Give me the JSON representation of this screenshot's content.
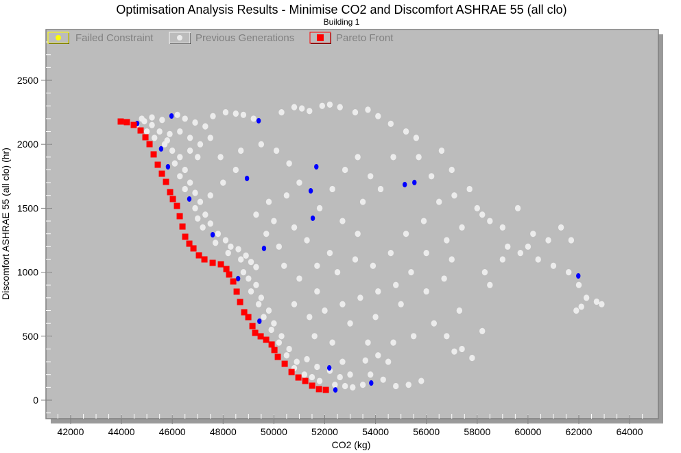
{
  "chart_data": {
    "type": "scatter",
    "title": "Optimisation Analysis Results - Minimise CO2 and Discomfort ASHRAE 55 (all clo)",
    "subtitle": "Building 1",
    "xlabel": "CO2 (kg)",
    "ylabel": "Discomfort ASHRAE 55 (all clo) (hr)",
    "xlim": [
      41000,
      65000
    ],
    "ylim": [
      -150,
      2900
    ],
    "xticks": [
      42000,
      44000,
      46000,
      48000,
      50000,
      52000,
      54000,
      56000,
      58000,
      60000,
      62000,
      64000
    ],
    "yticks": [
      0,
      500,
      1000,
      1500,
      2000,
      2500
    ],
    "legend_position": "top-left",
    "colors": {
      "plot_bg": "#bcbcbc",
      "previous": "#ececec",
      "pareto": "#ff0000",
      "current": "#0000ff",
      "failed": "#ffff00",
      "shadow": "#9a9a9a"
    },
    "legend": [
      {
        "name": "Failed Constraint",
        "marker": "circle",
        "color": "#ffff00"
      },
      {
        "name": "Previous Generations",
        "marker": "circle",
        "color": "#ececec"
      },
      {
        "name": "Pareto Front",
        "marker": "square",
        "color": "#ff0000"
      }
    ],
    "series": [
      {
        "name": "Previous Generations",
        "marker": "circle",
        "color": "#ececec",
        "points": [
          [
            44800,
            2200
          ],
          [
            45200,
            2210
          ],
          [
            45600,
            2190
          ],
          [
            46200,
            2230
          ],
          [
            46500,
            2200
          ],
          [
            46900,
            2170
          ],
          [
            47300,
            2140
          ],
          [
            47600,
            2220
          ],
          [
            48100,
            2250
          ],
          [
            48500,
            2240
          ],
          [
            48800,
            2230
          ],
          [
            49200,
            2200
          ],
          [
            50300,
            2250
          ],
          [
            50800,
            2290
          ],
          [
            51100,
            2280
          ],
          [
            51400,
            2260
          ],
          [
            51900,
            2300
          ],
          [
            52200,
            2310
          ],
          [
            52600,
            2290
          ],
          [
            53200,
            2250
          ],
          [
            53700,
            2270
          ],
          [
            54100,
            2220
          ],
          [
            54600,
            2160
          ],
          [
            55200,
            2100
          ],
          [
            55600,
            2050
          ],
          [
            56600,
            1950
          ],
          [
            57000,
            1800
          ],
          [
            45000,
            2100
          ],
          [
            45300,
            2050
          ],
          [
            45700,
            2000
          ],
          [
            46000,
            1950
          ],
          [
            46300,
            1900
          ],
          [
            46100,
            1850
          ],
          [
            46500,
            1800
          ],
          [
            46300,
            1750
          ],
          [
            46700,
            1700
          ],
          [
            46500,
            1650
          ],
          [
            46900,
            1620
          ],
          [
            47100,
            1550
          ],
          [
            46900,
            1500
          ],
          [
            47300,
            1450
          ],
          [
            47000,
            1420
          ],
          [
            47500,
            1380
          ],
          [
            47200,
            1350
          ],
          [
            47800,
            1300
          ],
          [
            48100,
            1250
          ],
          [
            47700,
            1230
          ],
          [
            48300,
            1200
          ],
          [
            48600,
            1180
          ],
          [
            48200,
            1150
          ],
          [
            48900,
            1130
          ],
          [
            48700,
            1100
          ],
          [
            49100,
            1080
          ],
          [
            49300,
            1040
          ],
          [
            48800,
            1000
          ],
          [
            49000,
            950
          ],
          [
            49300,
            900
          ],
          [
            49100,
            850
          ],
          [
            49500,
            800
          ],
          [
            49400,
            750
          ],
          [
            49800,
            700
          ],
          [
            49600,
            650
          ],
          [
            50000,
            600
          ],
          [
            49900,
            550
          ],
          [
            50300,
            500
          ],
          [
            50200,
            450
          ],
          [
            50600,
            400
          ],
          [
            50500,
            350
          ],
          [
            50900,
            300
          ],
          [
            50800,
            250
          ],
          [
            51200,
            200
          ],
          [
            51500,
            180
          ],
          [
            51800,
            150
          ],
          [
            52400,
            120
          ],
          [
            52800,
            110
          ],
          [
            53100,
            100
          ],
          [
            53500,
            120
          ],
          [
            52600,
            180
          ],
          [
            53000,
            200
          ],
          [
            52200,
            230
          ],
          [
            51700,
            260
          ],
          [
            51300,
            320
          ],
          [
            52700,
            300
          ],
          [
            53800,
            200
          ],
          [
            54300,
            160
          ],
          [
            54800,
            110
          ],
          [
            55300,
            120
          ],
          [
            55800,
            150
          ],
          [
            54500,
            300
          ],
          [
            54100,
            350
          ],
          [
            53600,
            310
          ],
          [
            47500,
            1600
          ],
          [
            48000,
            1700
          ],
          [
            48500,
            1800
          ],
          [
            47900,
            1900
          ],
          [
            48700,
            1950
          ],
          [
            49500,
            2000
          ],
          [
            50100,
            1950
          ],
          [
            50600,
            1850
          ],
          [
            51000,
            1700
          ],
          [
            50500,
            1600
          ],
          [
            49800,
            1550
          ],
          [
            49300,
            1450
          ],
          [
            50000,
            1400
          ],
          [
            50800,
            1350
          ],
          [
            51300,
            1250
          ],
          [
            50200,
            1200
          ],
          [
            49700,
            1300
          ],
          [
            51800,
            1500
          ],
          [
            52300,
            1650
          ],
          [
            52800,
            1800
          ],
          [
            53300,
            1900
          ],
          [
            53800,
            1750
          ],
          [
            54200,
            1650
          ],
          [
            53500,
            1550
          ],
          [
            52700,
            1400
          ],
          [
            53300,
            1300
          ],
          [
            52200,
            1150
          ],
          [
            51700,
            1050
          ],
          [
            51000,
            950
          ],
          [
            50400,
            1050
          ],
          [
            52500,
            1000
          ],
          [
            53200,
            1100
          ],
          [
            53900,
            1050
          ],
          [
            54600,
            1150
          ],
          [
            55200,
            1300
          ],
          [
            55900,
            1400
          ],
          [
            56500,
            1550
          ],
          [
            57100,
            1600
          ],
          [
            56200,
            1750
          ],
          [
            55700,
            1900
          ],
          [
            54700,
            1900
          ],
          [
            57700,
            1650
          ],
          [
            58200,
            1450
          ],
          [
            57400,
            1350
          ],
          [
            56800,
            1250
          ],
          [
            56000,
            1150
          ],
          [
            55400,
            1000
          ],
          [
            54800,
            900
          ],
          [
            54100,
            850
          ],
          [
            53400,
            800
          ],
          [
            52700,
            750
          ],
          [
            52000,
            700
          ],
          [
            51400,
            650
          ],
          [
            50800,
            750
          ],
          [
            51700,
            850
          ],
          [
            53000,
            600
          ],
          [
            54000,
            650
          ],
          [
            55000,
            750
          ],
          [
            56000,
            850
          ],
          [
            56700,
            950
          ],
          [
            57300,
            700
          ],
          [
            56300,
            600
          ],
          [
            55500,
            500
          ],
          [
            56800,
            500
          ],
          [
            57400,
            400
          ],
          [
            57800,
            330
          ],
          [
            57100,
            380
          ],
          [
            54700,
            450
          ],
          [
            53700,
            450
          ],
          [
            52300,
            450
          ],
          [
            51600,
            500
          ],
          [
            58000,
            1500
          ],
          [
            58500,
            1400
          ],
          [
            59000,
            1350
          ],
          [
            59600,
            1500
          ],
          [
            60200,
            1300
          ],
          [
            60800,
            1250
          ],
          [
            61300,
            1350
          ],
          [
            61700,
            1250
          ],
          [
            59700,
            1150
          ],
          [
            60400,
            1100
          ],
          [
            61000,
            1050
          ],
          [
            61600,
            1000
          ],
          [
            62000,
            900
          ],
          [
            62300,
            800
          ],
          [
            62700,
            770
          ],
          [
            62900,
            750
          ],
          [
            61900,
            700
          ],
          [
            62100,
            730
          ],
          [
            59000,
            1100
          ],
          [
            58300,
            1000
          ],
          [
            58500,
            900
          ],
          [
            58200,
            540
          ],
          [
            59200,
            1200
          ],
          [
            60000,
            1200
          ],
          [
            57000,
            1100
          ],
          [
            44600,
            2150
          ],
          [
            44900,
            2180
          ],
          [
            45200,
            2150
          ],
          [
            45500,
            2100
          ],
          [
            45900,
            2080
          ],
          [
            46300,
            2100
          ],
          [
            46700,
            2050
          ],
          [
            47100,
            2000
          ],
          [
            47500,
            2050
          ],
          [
            47000,
            1900
          ],
          [
            46700,
            1950
          ],
          [
            45800,
            2030
          ]
        ]
      },
      {
        "name": "Current Generation",
        "marker": "circle",
        "color": "#0000ff",
        "points": [
          [
            44620,
            2162
          ],
          [
            45970,
            2221
          ],
          [
            49400,
            2184
          ],
          [
            45560,
            1964
          ],
          [
            45830,
            1824
          ],
          [
            48940,
            1733
          ],
          [
            46670,
            1572
          ],
          [
            51670,
            1824
          ],
          [
            51450,
            1636
          ],
          [
            51530,
            1422
          ],
          [
            47590,
            1293
          ],
          [
            49610,
            1186
          ],
          [
            48590,
            950
          ],
          [
            55150,
            1685
          ],
          [
            55530,
            1701
          ],
          [
            61980,
            971
          ],
          [
            49430,
            617
          ],
          [
            52180,
            252
          ],
          [
            52420,
            80
          ],
          [
            53830,
            134
          ]
        ]
      },
      {
        "name": "Pareto Front",
        "marker": "square",
        "color": "#ff0000",
        "points": [
          [
            43971,
            2178
          ],
          [
            44214,
            2173
          ],
          [
            44484,
            2151
          ],
          [
            44754,
            2108
          ],
          [
            44943,
            2055
          ],
          [
            45105,
            2001
          ],
          [
            45267,
            1921
          ],
          [
            45429,
            1840
          ],
          [
            45591,
            1770
          ],
          [
            45753,
            1706
          ],
          [
            45915,
            1626
          ],
          [
            46023,
            1572
          ],
          [
            46185,
            1518
          ],
          [
            46293,
            1438
          ],
          [
            46401,
            1357
          ],
          [
            46509,
            1277
          ],
          [
            46671,
            1223
          ],
          [
            46833,
            1186
          ],
          [
            47049,
            1132
          ],
          [
            47265,
            1100
          ],
          [
            47589,
            1073
          ],
          [
            47913,
            1062
          ],
          [
            48129,
            1025
          ],
          [
            48237,
            982
          ],
          [
            48399,
            928
          ],
          [
            48534,
            848
          ],
          [
            48669,
            767
          ],
          [
            48831,
            687
          ],
          [
            48993,
            649
          ],
          [
            49155,
            579
          ],
          [
            49263,
            526
          ],
          [
            49479,
            499
          ],
          [
            49695,
            472
          ],
          [
            49911,
            435
          ],
          [
            50019,
            392
          ],
          [
            50154,
            338
          ],
          [
            50424,
            284
          ],
          [
            50694,
            220
          ],
          [
            50964,
            177
          ],
          [
            51234,
            150
          ],
          [
            51504,
            113
          ],
          [
            51774,
            86
          ],
          [
            52044,
            80
          ]
        ]
      }
    ]
  }
}
